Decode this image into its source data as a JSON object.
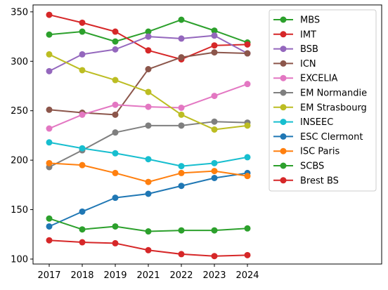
{
  "chart_data": {
    "type": "line",
    "title": "",
    "xlabel": "",
    "ylabel": "",
    "categories": [
      "2017",
      "2018",
      "2019",
      "2021",
      "2022",
      "2023",
      "2024"
    ],
    "y_ticks": [
      100,
      150,
      200,
      250,
      300,
      350
    ],
    "ylim": [
      95,
      357
    ],
    "grid": false,
    "legend_position": "top-right",
    "series": [
      {
        "name": "MBS",
        "color": "#2ca02c",
        "values": [
          327,
          330,
          320,
          330,
          342,
          331,
          319
        ]
      },
      {
        "name": "IMT",
        "color": "#d62728",
        "values": [
          347,
          339,
          330,
          311,
          302,
          316,
          317
        ]
      },
      {
        "name": "BSB",
        "color": "#9467bd",
        "values": [
          290,
          307,
          312,
          325,
          323,
          326,
          308
        ]
      },
      {
        "name": "ICN",
        "color": "#8c564b",
        "values": [
          251,
          248,
          246,
          292,
          304,
          309,
          308
        ]
      },
      {
        "name": "EXCELIA",
        "color": "#e377c2",
        "values": [
          232,
          246,
          256,
          254,
          253,
          265,
          277
        ]
      },
      {
        "name": "EM Normandie",
        "color": "#7f7f7f",
        "values": [
          193,
          210,
          228,
          235,
          235,
          239,
          238
        ]
      },
      {
        "name": "EM Strasbourg",
        "color": "#bcbd22",
        "values": [
          307,
          291,
          281,
          269,
          246,
          231,
          235
        ]
      },
      {
        "name": "INSEEC",
        "color": "#17becf",
        "values": [
          218,
          212,
          207,
          201,
          194,
          197,
          203
        ]
      },
      {
        "name": "ESC Clermont",
        "color": "#1f77b4",
        "values": [
          133,
          148,
          162,
          166,
          174,
          182,
          187
        ]
      },
      {
        "name": "ISC Paris",
        "color": "#ff7f0e",
        "values": [
          197,
          195,
          187,
          178,
          187,
          189,
          184
        ]
      },
      {
        "name": "SCBS",
        "color": "#2ca02c",
        "values": [
          141,
          130,
          133,
          128,
          129,
          129,
          131
        ]
      },
      {
        "name": "Brest BS",
        "color": "#d62728",
        "values": [
          119,
          117,
          116,
          109,
          105,
          103,
          104
        ]
      }
    ]
  }
}
